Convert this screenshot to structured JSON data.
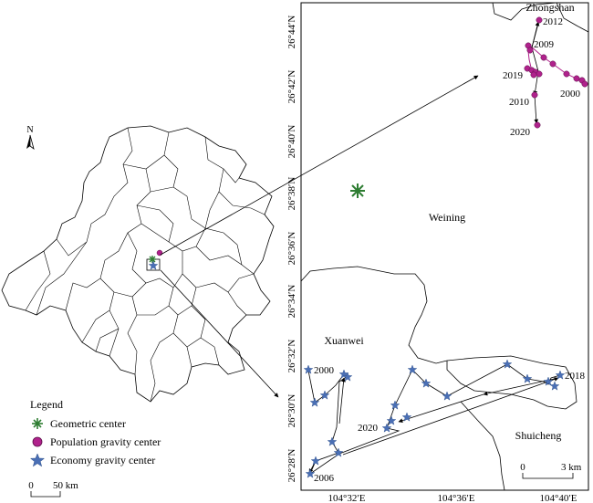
{
  "overview_map": {
    "north_label": "N",
    "scale_bar": {
      "zero": "0",
      "distance": "50 km"
    }
  },
  "legend": {
    "title": "Legend",
    "items": [
      {
        "label": "Geometric center",
        "symbol": "asterisk",
        "color": "#2e7d32"
      },
      {
        "label": "Population gravity center",
        "symbol": "circle",
        "color": "#b0228c"
      },
      {
        "label": "Economy gravity center",
        "symbol": "star",
        "color": "#4a6fb5"
      }
    ]
  },
  "detail_map": {
    "lat_labels": [
      "26°44′N",
      "26°42′N",
      "26°40′N",
      "26°38′N",
      "26°36′N",
      "26°34′N",
      "26°32′N",
      "26°30′N",
      "26°28′N"
    ],
    "lon_labels": [
      "104°32′E",
      "104°36′E",
      "104°40′E"
    ],
    "region_labels": {
      "zhongshan": "Zhongshan",
      "weining": "Weining",
      "xuanwei": "Xuanwei",
      "shuicheng": "Shuicheng"
    },
    "population_year_labels": [
      "2012",
      "2009",
      "2019",
      "2010",
      "2000",
      "2020"
    ],
    "economy_year_labels": [
      "2000",
      "2018",
      "2020",
      "2006"
    ],
    "scale_bar": {
      "zero": "0",
      "distance": "3 km"
    },
    "colors": {
      "population": "#b0228c",
      "economy": "#4a6fb5",
      "geometric": "#2e7d32"
    }
  }
}
